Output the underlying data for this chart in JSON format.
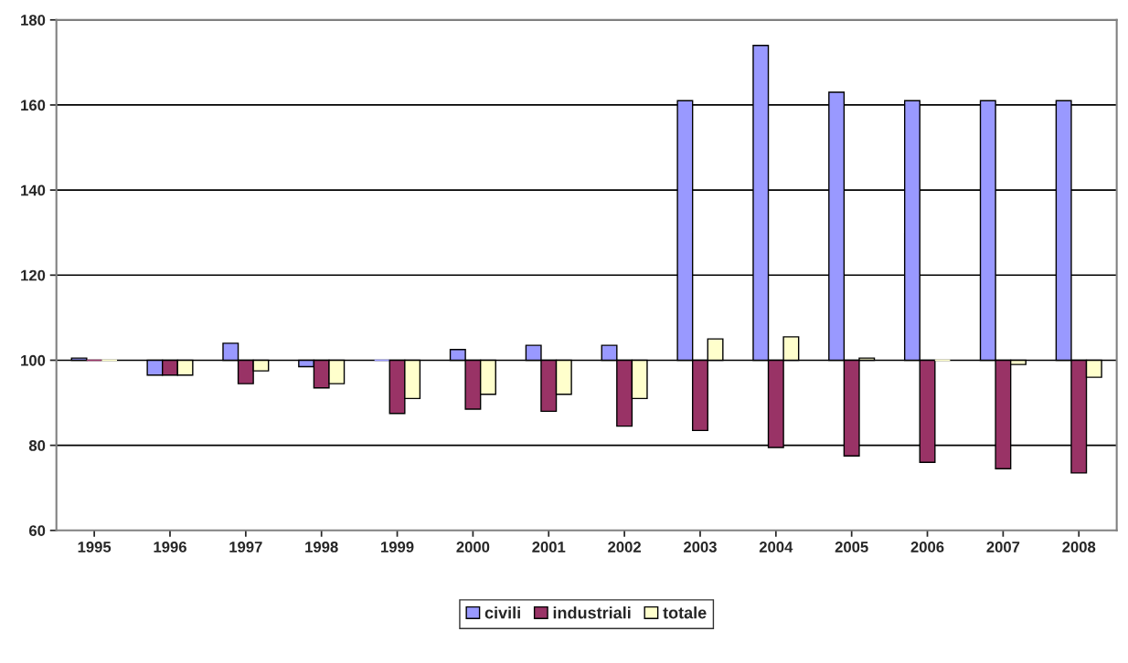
{
  "chart_data": {
    "type": "bar",
    "categories": [
      "1995",
      "1996",
      "1997",
      "1998",
      "1999",
      "2000",
      "2001",
      "2002",
      "2003",
      "2004",
      "2005",
      "2006",
      "2007",
      "2008"
    ],
    "series": [
      {
        "name": "civili",
        "color": "#9999ff",
        "base": [
          100,
          100,
          100,
          100,
          100,
          100,
          100,
          100,
          100,
          100,
          100,
          100,
          100,
          100
        ],
        "values": [
          0.5,
          -3.5,
          4,
          -1.5,
          0,
          2.5,
          3.5,
          3.5,
          61,
          74,
          63,
          61,
          61,
          61
        ]
      },
      {
        "name": "industriali",
        "color": "#993366",
        "base": [
          100,
          100,
          100,
          100,
          100,
          100,
          100,
          100,
          100,
          100,
          100,
          100,
          100,
          100
        ],
        "values": [
          0,
          -3.5,
          -5.5,
          -6.5,
          -12.5,
          -11.5,
          -12,
          -15.5,
          -16.5,
          -20.5,
          -22.5,
          -24,
          -25.5,
          -26.5
        ]
      },
      {
        "name": "totale",
        "color": "#ffffcc",
        "base": [
          100,
          100,
          100,
          100,
          100,
          100,
          100,
          100,
          100,
          100,
          100,
          100,
          100,
          100
        ],
        "values": [
          0,
          -3.5,
          -2.5,
          -5.5,
          -9,
          -8,
          -8,
          -9,
          5,
          5.5,
          0.5,
          0,
          -1,
          -4
        ]
      }
    ],
    "ylim": [
      60,
      180
    ],
    "yticks": [
      60,
      80,
      100,
      120,
      140,
      160,
      180
    ],
    "grid": "y",
    "legend": "bottom"
  }
}
